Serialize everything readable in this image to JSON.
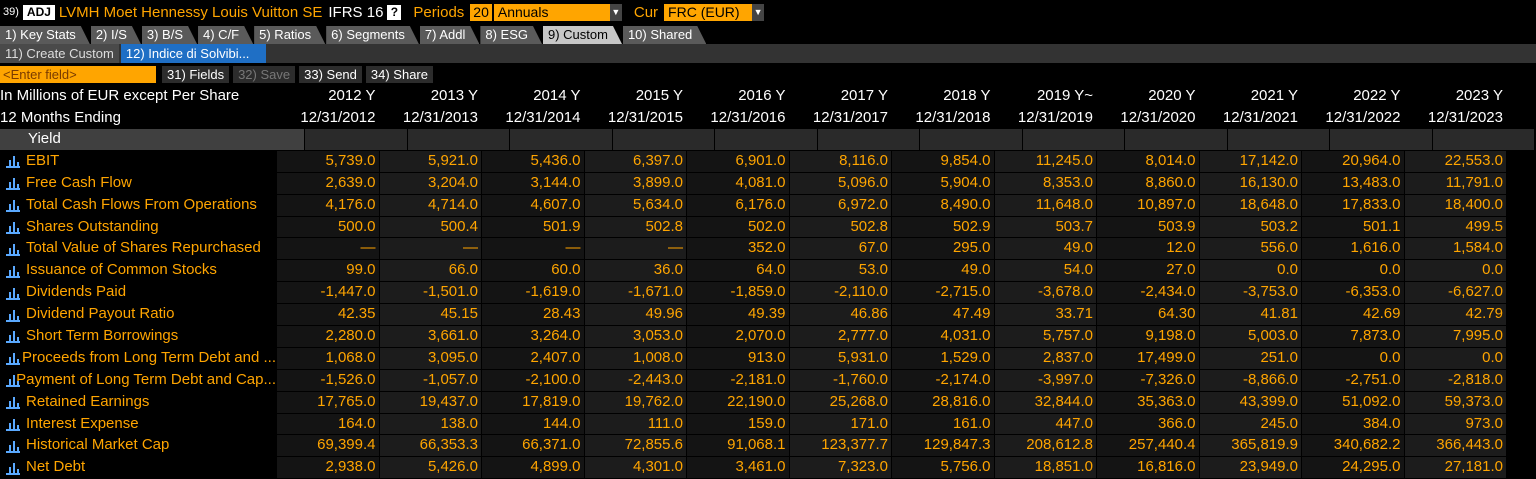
{
  "header": {
    "num": "39)",
    "adj": "ADJ",
    "title": "LVMH Moet Hennessy Louis Vuitton SE",
    "standard": "IFRS 16",
    "help": "?",
    "periods_label": "Periods",
    "periods_value": "20",
    "period_type": "Annuals",
    "cur_label": "Cur",
    "cur_value": "FRC (EUR)"
  },
  "tabs": [
    {
      "label": "1) Key Stats",
      "active": false
    },
    {
      "label": "2) I/S",
      "active": false
    },
    {
      "label": "3) B/S",
      "active": false
    },
    {
      "label": "4) C/F",
      "active": false
    },
    {
      "label": "5) Ratios",
      "active": false
    },
    {
      "label": "6) Segments",
      "active": false
    },
    {
      "label": "7) Addl",
      "active": false
    },
    {
      "label": "8) ESG",
      "active": false
    },
    {
      "label": "9) Custom",
      "active": true
    },
    {
      "label": "10) Shared",
      "active": false
    }
  ],
  "subtabs": {
    "create": "11) Create Custom",
    "indice": "12) Indice di Solvibi..."
  },
  "toolbar": {
    "field_placeholder": "<Enter field>",
    "fields": "31) Fields",
    "save": "32) Save",
    "send": "33) Send",
    "share": "34) Share"
  },
  "table": {
    "header1_label": "In Millions of EUR except Per Share",
    "header2_label": "12 Months Ending",
    "years": [
      "2012 Y",
      "2013 Y",
      "2014 Y",
      "2015 Y",
      "2016 Y",
      "2017 Y",
      "2018 Y",
      "2019 Y~",
      "2020 Y",
      "2021 Y",
      "2022 Y",
      "2023 Y"
    ],
    "dates": [
      "12/31/2012",
      "12/31/2013",
      "12/31/2014",
      "12/31/2015",
      "12/31/2016",
      "12/31/2017",
      "12/31/2018",
      "12/31/2019",
      "12/31/2020",
      "12/31/2021",
      "12/31/2022",
      "12/31/2023"
    ],
    "section": "Yield",
    "rows": [
      {
        "label": "EBIT",
        "values": [
          "5,739.0",
          "5,921.0",
          "5,436.0",
          "6,397.0",
          "6,901.0",
          "8,116.0",
          "9,854.0",
          "11,245.0",
          "8,014.0",
          "17,142.0",
          "20,964.0",
          "22,553.0"
        ]
      },
      {
        "label": "Free Cash Flow",
        "values": [
          "2,639.0",
          "3,204.0",
          "3,144.0",
          "3,899.0",
          "4,081.0",
          "5,096.0",
          "5,904.0",
          "8,353.0",
          "8,860.0",
          "16,130.0",
          "13,483.0",
          "11,791.0"
        ]
      },
      {
        "label": "Total Cash Flows From Operations",
        "values": [
          "4,176.0",
          "4,714.0",
          "4,607.0",
          "5,634.0",
          "6,176.0",
          "6,972.0",
          "8,490.0",
          "11,648.0",
          "10,897.0",
          "18,648.0",
          "17,833.0",
          "18,400.0"
        ]
      },
      {
        "label": "Shares Outstanding",
        "values": [
          "500.0",
          "500.4",
          "501.9",
          "502.8",
          "502.0",
          "502.8",
          "502.9",
          "503.7",
          "503.9",
          "503.2",
          "501.1",
          "499.5"
        ]
      },
      {
        "label": "Total Value of Shares Repurchased",
        "values": [
          "—",
          "—",
          "—",
          "—",
          "352.0",
          "67.0",
          "295.0",
          "49.0",
          "12.0",
          "556.0",
          "1,616.0",
          "1,584.0"
        ]
      },
      {
        "label": "Issuance of Common Stocks",
        "values": [
          "99.0",
          "66.0",
          "60.0",
          "36.0",
          "64.0",
          "53.0",
          "49.0",
          "54.0",
          "27.0",
          "0.0",
          "0.0",
          "0.0"
        ]
      },
      {
        "label": "Dividends Paid",
        "values": [
          "-1,447.0",
          "-1,501.0",
          "-1,619.0",
          "-1,671.0",
          "-1,859.0",
          "-2,110.0",
          "-2,715.0",
          "-3,678.0",
          "-2,434.0",
          "-3,753.0",
          "-6,353.0",
          "-6,627.0"
        ]
      },
      {
        "label": "Dividend Payout Ratio",
        "values": [
          "42.35",
          "45.15",
          "28.43",
          "49.96",
          "49.39",
          "46.86",
          "47.49",
          "33.71",
          "64.30",
          "41.81",
          "42.69",
          "42.79"
        ]
      },
      {
        "label": "Short Term Borrowings",
        "values": [
          "2,280.0",
          "3,661.0",
          "3,264.0",
          "3,053.0",
          "2,070.0",
          "2,777.0",
          "4,031.0",
          "5,757.0",
          "9,198.0",
          "5,003.0",
          "7,873.0",
          "7,995.0"
        ]
      },
      {
        "label": "Proceeds from Long Term Debt and ...",
        "values": [
          "1,068.0",
          "3,095.0",
          "2,407.0",
          "1,008.0",
          "913.0",
          "5,931.0",
          "1,529.0",
          "2,837.0",
          "17,499.0",
          "251.0",
          "0.0",
          "0.0"
        ]
      },
      {
        "label": "Payment of Long Term Debt and Cap...",
        "values": [
          "-1,526.0",
          "-1,057.0",
          "-2,100.0",
          "-2,443.0",
          "-2,181.0",
          "-1,760.0",
          "-2,174.0",
          "-3,997.0",
          "-7,326.0",
          "-8,866.0",
          "-2,751.0",
          "-2,818.0"
        ]
      },
      {
        "label": "Retained Earnings",
        "values": [
          "17,765.0",
          "19,437.0",
          "17,819.0",
          "19,762.0",
          "22,190.0",
          "25,268.0",
          "28,816.0",
          "32,844.0",
          "35,363.0",
          "43,399.0",
          "51,092.0",
          "59,373.0"
        ]
      },
      {
        "label": "Interest Expense",
        "values": [
          "164.0",
          "138.0",
          "144.0",
          "111.0",
          "159.0",
          "171.0",
          "161.0",
          "447.0",
          "366.0",
          "245.0",
          "384.0",
          "973.0"
        ]
      },
      {
        "label": "Historical Market Cap",
        "values": [
          "69,399.4",
          "66,353.3",
          "66,371.0",
          "72,855.6",
          "91,068.1",
          "123,377.7",
          "129,847.3",
          "208,612.8",
          "257,440.4",
          "365,819.9",
          "340,682.2",
          "366,443.0"
        ]
      },
      {
        "label": "Net Debt",
        "values": [
          "2,938.0",
          "5,426.0",
          "4,899.0",
          "4,301.0",
          "3,461.0",
          "7,323.0",
          "5,756.0",
          "18,851.0",
          "16,816.0",
          "23,949.0",
          "24,295.0",
          "27,181.0"
        ]
      }
    ]
  },
  "colors": {
    "accent": "#ffa500",
    "active_tab": "#1f6fc5",
    "icon": "#5aa9ff"
  }
}
